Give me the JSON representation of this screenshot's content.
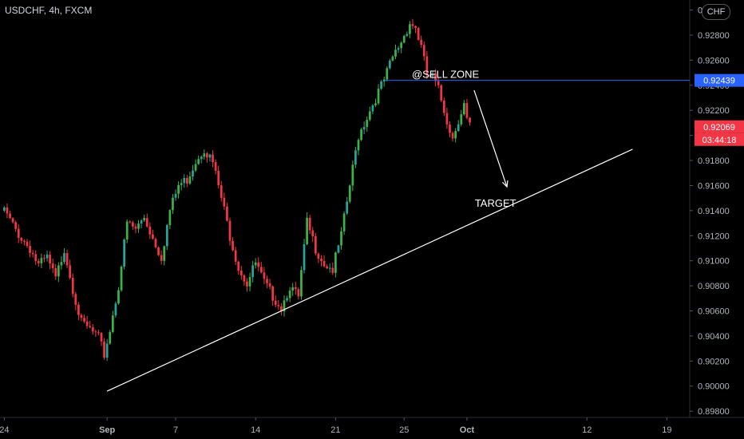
{
  "header": {
    "title": "USDCHF, 4h, FXCM",
    "currency": "CHF"
  },
  "chart_data": {
    "type": "candlestick",
    "title": "USDCHF, 4h, FXCM",
    "ylim": [
      0.8975,
      0.9308
    ],
    "price_ticks": [
      "0.93000",
      "0.92800",
      "0.92600",
      "0.92400",
      "0.92200",
      "0.92000",
      "0.91800",
      "0.91600",
      "0.91400",
      "0.91200",
      "0.91000",
      "0.90800",
      "0.90600",
      "0.90400",
      "0.90200",
      "0.90000",
      "0.89800"
    ],
    "date_ticks": [
      {
        "label": "24",
        "bar": 0
      },
      {
        "label": "Sep",
        "bar": 36
      },
      {
        "label": "7",
        "bar": 60
      },
      {
        "label": "14",
        "bar": 88
      },
      {
        "label": "21",
        "bar": 116
      },
      {
        "label": "25",
        "bar": 140
      },
      {
        "label": "Oct",
        "bar": 162
      },
      {
        "label": "12",
        "bar": 204
      },
      {
        "label": "19",
        "bar": 232
      }
    ],
    "x_bar_range": [
      -1.5,
      240
    ],
    "price_labels": [
      {
        "text": "0.92439",
        "price": 0.92439,
        "color": "#2962ff"
      },
      {
        "text": "0.92069",
        "price": 0.92069,
        "color": "#f23645"
      }
    ],
    "countdown": "03:44:18",
    "horizontal_line": {
      "price": 0.92439,
      "color": "#2962ff",
      "from_bar": 133
    },
    "trendline": {
      "from": {
        "bar": 36,
        "price": 0.8996
      },
      "to": {
        "bar": 220,
        "price": 0.9189
      },
      "color": "#ffffff"
    },
    "arrow": {
      "from": {
        "bar": 164.5,
        "price": 0.9236
      },
      "to": {
        "bar": 176,
        "price": 0.9159
      }
    },
    "annotations": [
      {
        "text": "@SELL ZONE",
        "bar": 154.5,
        "price": 0.9246
      },
      {
        "text": "TARGET",
        "bar": 172,
        "price": 0.9143
      }
    ],
    "up_color": "#26a69a",
    "up_color_alt": "#3cb34a",
    "down_color": "#f23645",
    "anchors": [
      [
        0,
        0.914
      ],
      [
        3,
        0.9128
      ],
      [
        6,
        0.9118
      ],
      [
        9,
        0.911
      ],
      [
        12,
        0.9096
      ],
      [
        15,
        0.9102
      ],
      [
        18,
        0.9085
      ],
      [
        21,
        0.911
      ],
      [
        24,
        0.9078
      ],
      [
        27,
        0.905
      ],
      [
        30,
        0.9045
      ],
      [
        33,
        0.9038
      ],
      [
        35,
        0.9025
      ],
      [
        37,
        0.9045
      ],
      [
        40,
        0.908
      ],
      [
        43,
        0.913
      ],
      [
        46,
        0.9125
      ],
      [
        49,
        0.9135
      ],
      [
        52,
        0.9118
      ],
      [
        55,
        0.9103
      ],
      [
        58,
        0.914
      ],
      [
        61,
        0.916
      ],
      [
        64,
        0.9165
      ],
      [
        67,
        0.918
      ],
      [
        70,
        0.919
      ],
      [
        73,
        0.9178
      ],
      [
        76,
        0.915
      ],
      [
        79,
        0.912
      ],
      [
        82,
        0.9095
      ],
      [
        85,
        0.9082
      ],
      [
        88,
        0.9098
      ],
      [
        91,
        0.9082
      ],
      [
        94,
        0.9072
      ],
      [
        97,
        0.9063
      ],
      [
        100,
        0.908
      ],
      [
        103,
        0.907
      ],
      [
        106,
        0.913
      ],
      [
        109,
        0.911
      ],
      [
        112,
        0.9098
      ],
      [
        115,
        0.9093
      ],
      [
        118,
        0.912
      ],
      [
        121,
        0.916
      ],
      [
        124,
        0.92
      ],
      [
        127,
        0.9215
      ],
      [
        130,
        0.923
      ],
      [
        133,
        0.9244
      ],
      [
        136,
        0.9262
      ],
      [
        139,
        0.9275
      ],
      [
        142,
        0.929
      ],
      [
        144,
        0.9286
      ],
      [
        146,
        0.927
      ],
      [
        148,
        0.9248
      ],
      [
        150,
        0.9246
      ],
      [
        152,
        0.9236
      ],
      [
        155,
        0.9212
      ],
      [
        157,
        0.9198
      ],
      [
        159,
        0.9213
      ],
      [
        161,
        0.9225
      ],
      [
        162,
        0.9212
      ],
      [
        163,
        0.9207
      ]
    ]
  }
}
